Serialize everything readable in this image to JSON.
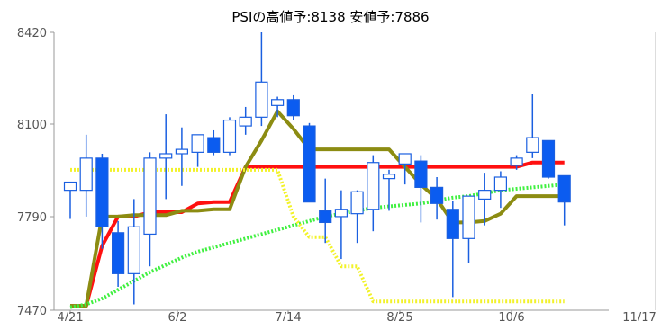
{
  "chart_data": {
    "type": "candlestick",
    "title": "PSIの高値予:8138 安値予:7886",
    "ylim": [
      7470,
      8420
    ],
    "y_ticks": [
      "8420",
      "8100",
      "7790",
      "7470"
    ],
    "x_ticks": [
      "4/21",
      "6/2",
      "7/14",
      "8/25",
      "10/6",
      "11/17"
    ],
    "grid": false,
    "colors": {
      "up_fill": "#ffffff",
      "up_border": "#1a5fe0",
      "down_fill": "#0b5cf0",
      "wick": "#1a5fe0",
      "red_line": "#ff1010",
      "olive_line": "#8c8c12",
      "green_dotted": "#40f040",
      "yellow_dotted": "#f2f22a"
    },
    "candles": [
      {
        "date": "4/21",
        "open": 7880,
        "high": 7908,
        "low": 7782,
        "close": 7908
      },
      {
        "date": "4/28",
        "open": 7880,
        "high": 8070,
        "low": 7790,
        "close": 7990
      },
      {
        "date": "5/5",
        "open": 7990,
        "high": 8005,
        "low": 7680,
        "close": 7755
      },
      {
        "date": "5/12",
        "open": 7735,
        "high": 7775,
        "low": 7550,
        "close": 7595
      },
      {
        "date": "5/19",
        "open": 7595,
        "high": 7850,
        "low": 7490,
        "close": 7755
      },
      {
        "date": "5/26",
        "open": 7730,
        "high": 8010,
        "low": 7620,
        "close": 7990
      },
      {
        "date": "6/2",
        "open": 7990,
        "high": 8140,
        "low": 7850,
        "close": 8005
      },
      {
        "date": "6/9",
        "open": 8005,
        "high": 8095,
        "low": 7895,
        "close": 8020
      },
      {
        "date": "6/16",
        "open": 8010,
        "high": 8070,
        "low": 7960,
        "close": 8070
      },
      {
        "date": "6/23",
        "open": 8060,
        "high": 8085,
        "low": 8000,
        "close": 8010
      },
      {
        "date": "6/30",
        "open": 8010,
        "high": 8130,
        "low": 8000,
        "close": 8120
      },
      {
        "date": "7/7",
        "open": 8100,
        "high": 8165,
        "low": 8070,
        "close": 8130
      },
      {
        "date": "7/14",
        "open": 8130,
        "high": 8420,
        "low": 8100,
        "close": 8250
      },
      {
        "date": "7/21",
        "open": 8170,
        "high": 8200,
        "low": 8130,
        "close": 8190
      },
      {
        "date": "7/28",
        "open": 8190,
        "high": 8205,
        "low": 8120,
        "close": 8135
      },
      {
        "date": "8/4",
        "open": 8100,
        "high": 8110,
        "low": 7840,
        "close": 7840
      },
      {
        "date": "8/11",
        "open": 7810,
        "high": 7920,
        "low": 7700,
        "close": 7770
      },
      {
        "date": "8/18",
        "open": 7790,
        "high": 7880,
        "low": 7645,
        "close": 7815
      },
      {
        "date": "8/25",
        "open": 7800,
        "high": 7880,
        "low": 7700,
        "close": 7875
      },
      {
        "date": "9/1",
        "open": 7815,
        "high": 8000,
        "low": 7740,
        "close": 7975
      },
      {
        "date": "9/8",
        "open": 7920,
        "high": 7950,
        "low": 7810,
        "close": 7935
      },
      {
        "date": "9/15",
        "open": 7970,
        "high": 8005,
        "low": 7900,
        "close": 8005
      },
      {
        "date": "9/22",
        "open": 7980,
        "high": 8000,
        "low": 7770,
        "close": 7890
      },
      {
        "date": "9/29",
        "open": 7890,
        "high": 7925,
        "low": 7780,
        "close": 7835
      },
      {
        "date": "10/6",
        "open": 7815,
        "high": 7845,
        "low": 7515,
        "close": 7715
      },
      {
        "date": "10/13",
        "open": 7715,
        "high": 7855,
        "low": 7630,
        "close": 7860
      },
      {
        "date": "10/20",
        "open": 7850,
        "high": 7940,
        "low": 7760,
        "close": 7880
      },
      {
        "date": "10/27",
        "open": 7880,
        "high": 7945,
        "low": 7820,
        "close": 7925
      },
      {
        "date": "11/3",
        "open": 7965,
        "high": 8000,
        "low": 7950,
        "close": 7990
      },
      {
        "date": "11/10",
        "open": 8010,
        "high": 8210,
        "low": 7990,
        "close": 8060
      },
      {
        "date": "11/17",
        "open": 8050,
        "high": 8050,
        "low": 7920,
        "close": 7925
      },
      {
        "date": "11/24",
        "open": 7930,
        "high": 7930,
        "low": 7760,
        "close": 7840
      }
    ],
    "series": [
      {
        "style": "solid",
        "color_key": "red_line",
        "values": [
          7485,
          7485,
          7690,
          7790,
          7790,
          7805,
          7805,
          7805,
          7835,
          7840,
          7840,
          7960,
          7960,
          7960,
          7960,
          7960,
          7960,
          7960,
          7960,
          7960,
          7960,
          7960,
          7960,
          7960,
          7960,
          7960,
          7960,
          7960,
          7960,
          7975,
          7975,
          7975
        ]
      },
      {
        "style": "solid",
        "color_key": "olive_line",
        "values": [
          7485,
          7485,
          7790,
          7790,
          7795,
          7795,
          7795,
          7810,
          7810,
          7815,
          7815,
          7960,
          8050,
          8150,
          8090,
          8020,
          8020,
          8020,
          8020,
          8020,
          8020,
          7960,
          7900,
          7850,
          7770,
          7770,
          7775,
          7800,
          7860,
          7860,
          7860,
          7860
        ]
      },
      {
        "style": "dotted",
        "color_key": "green_dotted",
        "values": [
          7480,
          7490,
          7510,
          7540,
          7570,
          7600,
          7625,
          7650,
          7670,
          7685,
          7700,
          7715,
          7730,
          7745,
          7760,
          7775,
          7790,
          7800,
          7810,
          7820,
          7825,
          7830,
          7835,
          7845,
          7855,
          7860,
          7870,
          7880,
          7885,
          7890,
          7895,
          7900
        ]
      },
      {
        "style": "dotted",
        "color_key": "yellow_dotted",
        "values": [
          7950,
          7950,
          7950,
          7950,
          7950,
          7950,
          7950,
          7950,
          7950,
          7950,
          7950,
          7950,
          7950,
          7950,
          7790,
          7720,
          7720,
          7620,
          7620,
          7500,
          7500,
          7500,
          7500,
          7500,
          7500,
          7500,
          7500,
          7500,
          7500,
          7500,
          7500,
          7500
        ]
      }
    ]
  }
}
